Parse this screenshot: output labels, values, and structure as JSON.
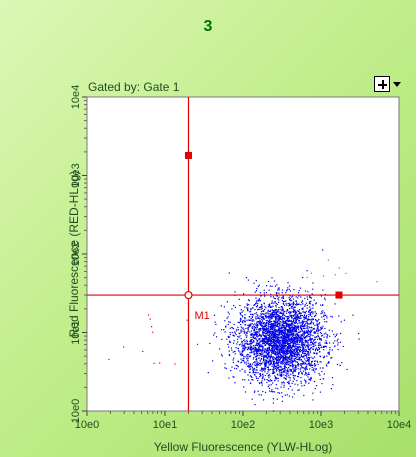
{
  "panel": {
    "title": "3",
    "gate_caption": "Gated by: Gate 1"
  },
  "chart_data": {
    "type": "scatter",
    "title": "3",
    "subtitle": "Gated by: Gate 1",
    "xlabel": "Yellow Fluorescence (YLW-HLog)",
    "ylabel": "Red Fluorescence (RED-HLog)",
    "x_scale": "log",
    "y_scale": "log",
    "xlim": [
      1,
      10000
    ],
    "ylim": [
      1,
      10000
    ],
    "x_ticks": [
      "10e0",
      "10e1",
      "10e2",
      "10e3",
      "10e4"
    ],
    "y_ticks": [
      "10e0",
      "10e1",
      "10e2",
      "10e3",
      "10e4"
    ],
    "marker_label": "M1",
    "quadrant_cross": {
      "x": 20,
      "y": 30
    },
    "markers": [
      {
        "x": 20,
        "y": 1800
      },
      {
        "x": 1700,
        "y": 30
      }
    ],
    "series": [
      {
        "color": "#0000e6",
        "center": {
          "x": 300,
          "y": 8
        },
        "spread_log10": {
          "x": 0.28,
          "y": 0.27
        },
        "approx_events": 3500
      },
      {
        "color": "#e00000",
        "center": {
          "x": 8,
          "y": 6
        },
        "spread_log10": {
          "x": 0.35,
          "y": 0.3
        },
        "approx_events": 12
      },
      {
        "color": "#22bb22",
        "center": {
          "x": 1500,
          "y": 50
        },
        "spread_log10": {
          "x": 0.25,
          "y": 0.2
        },
        "approx_events": 10
      }
    ],
    "grid": false,
    "legend": "none"
  },
  "colors": {
    "background": "#c2ee8c",
    "title": "#007000",
    "plot_bg": "#ffffff",
    "gate_lines": "#e00000",
    "events": "#0000e6"
  },
  "icons": {
    "plot_menu": "plus-box-dropdown-icon"
  }
}
